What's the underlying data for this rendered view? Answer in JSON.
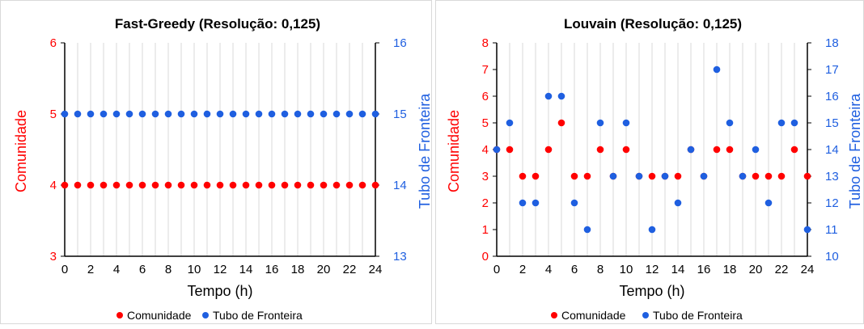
{
  "chart_data": [
    {
      "type": "scatter",
      "title": "Fast-Greedy (Resolução: 0,125)",
      "xlabel": "Tempo (h)",
      "ylabel_left": "Comunidade",
      "ylabel_right": "Tubo de Fronteira",
      "x_ticks": [
        "0",
        "2",
        "4",
        "6",
        "8",
        "10",
        "12",
        "14",
        "16",
        "18",
        "20",
        "22",
        "24"
      ],
      "xlim": [
        0,
        24
      ],
      "ylim_left": [
        3,
        6
      ],
      "ylim_right": [
        13,
        16
      ],
      "y_ticks_left": [
        "3",
        "4",
        "5",
        "6"
      ],
      "y_ticks_right": [
        "13",
        "14",
        "15",
        "16"
      ],
      "grid": "vertical",
      "legend_position": "bottom",
      "x": [
        0,
        1,
        2,
        3,
        4,
        5,
        6,
        7,
        8,
        9,
        10,
        11,
        12,
        13,
        14,
        15,
        16,
        17,
        18,
        19,
        20,
        21,
        22,
        23,
        24
      ],
      "series": [
        {
          "name": "Comunidade",
          "axis": "left",
          "color": "#ff0000",
          "values": [
            4,
            4,
            4,
            4,
            4,
            4,
            4,
            4,
            4,
            4,
            4,
            4,
            4,
            4,
            4,
            4,
            4,
            4,
            4,
            4,
            4,
            4,
            4,
            4,
            4
          ]
        },
        {
          "name": "Tubo de Fronteira",
          "axis": "right",
          "color": "#1f5fe0",
          "values": [
            15,
            15,
            15,
            15,
            15,
            15,
            15,
            15,
            15,
            15,
            15,
            15,
            15,
            15,
            15,
            15,
            15,
            15,
            15,
            15,
            15,
            15,
            15,
            15,
            15
          ]
        }
      ]
    },
    {
      "type": "scatter",
      "title": "Louvain (Resolução: 0,125)",
      "xlabel": "Tempo (h)",
      "ylabel_left": "Comunidade",
      "ylabel_right": "Tubo de Fronteira",
      "x_ticks": [
        "0",
        "2",
        "4",
        "6",
        "8",
        "10",
        "12",
        "14",
        "16",
        "18",
        "20",
        "22",
        "24"
      ],
      "xlim": [
        0,
        24
      ],
      "ylim_left": [
        0,
        8
      ],
      "ylim_right": [
        10,
        18
      ],
      "y_ticks_left": [
        "0",
        "1",
        "2",
        "3",
        "4",
        "5",
        "6",
        "7",
        "8"
      ],
      "y_ticks_right": [
        "10",
        "11",
        "12",
        "13",
        "14",
        "15",
        "16",
        "17",
        "18"
      ],
      "grid": "vertical",
      "legend_position": "bottom",
      "x": [
        0,
        1,
        2,
        3,
        4,
        5,
        6,
        7,
        8,
        9,
        10,
        11,
        12,
        13,
        14,
        15,
        16,
        17,
        18,
        19,
        20,
        21,
        22,
        23,
        24
      ],
      "series": [
        {
          "name": "Comunidade",
          "axis": "left",
          "color": "#ff0000",
          "values": [
            4,
            4,
            3,
            3,
            4,
            5,
            3,
            3,
            4,
            3,
            4,
            3,
            3,
            3,
            3,
            4,
            3,
            4,
            4,
            3,
            3,
            3,
            3,
            4,
            3
          ]
        },
        {
          "name": "Tubo de Fronteira",
          "axis": "right",
          "color": "#1f5fe0",
          "values": [
            14,
            15,
            12,
            12,
            16,
            16,
            12,
            11,
            15,
            13,
            15,
            13,
            11,
            13,
            12,
            14,
            13,
            17,
            15,
            13,
            14,
            12,
            15,
            15,
            11
          ]
        }
      ]
    }
  ]
}
